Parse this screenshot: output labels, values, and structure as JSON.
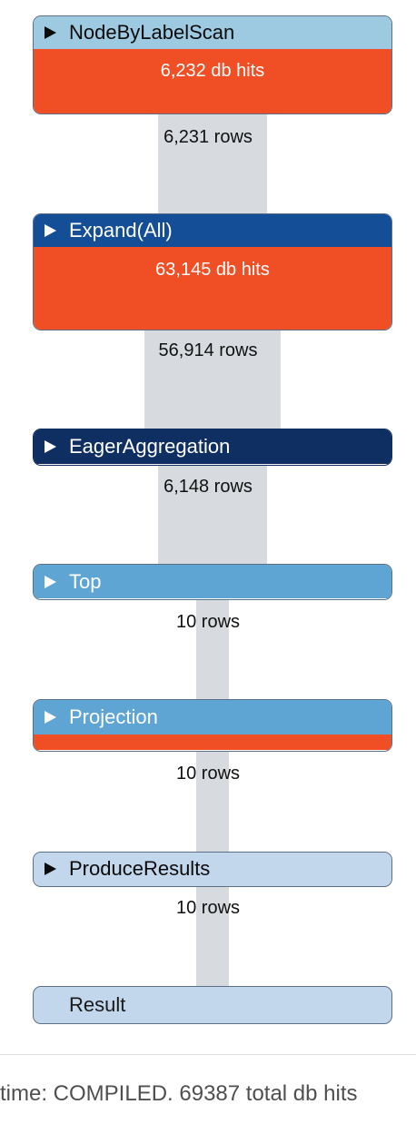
{
  "operators": [
    {
      "name": "NodeByLabelScan",
      "db_hits": "6,232 db hits",
      "rows": "6,231 rows"
    },
    {
      "name": "Expand(All)",
      "db_hits": "63,145 db hits",
      "rows": "56,914 rows"
    },
    {
      "name": "EagerAggregation",
      "rows": "6,148 rows"
    },
    {
      "name": "Top",
      "rows": "10 rows"
    },
    {
      "name": "Projection",
      "rows": "10 rows"
    },
    {
      "name": "ProduceResults",
      "rows": "10 rows"
    }
  ],
  "result_label": "Result",
  "footer_text": "time: COMPILED. 69387 total db hits",
  "colors": {
    "db_hit_bar": "#f04e24",
    "header_light": "#9ecae1",
    "header_dark_blue": "#134e96",
    "header_navy": "#0f2f62",
    "header_mid_blue": "#5ea5d3",
    "header_pale_blue": "#c2d6ec",
    "row_flow": "#d7dbdf"
  },
  "icons": {
    "expand_toggle": "triangle-right-icon"
  }
}
